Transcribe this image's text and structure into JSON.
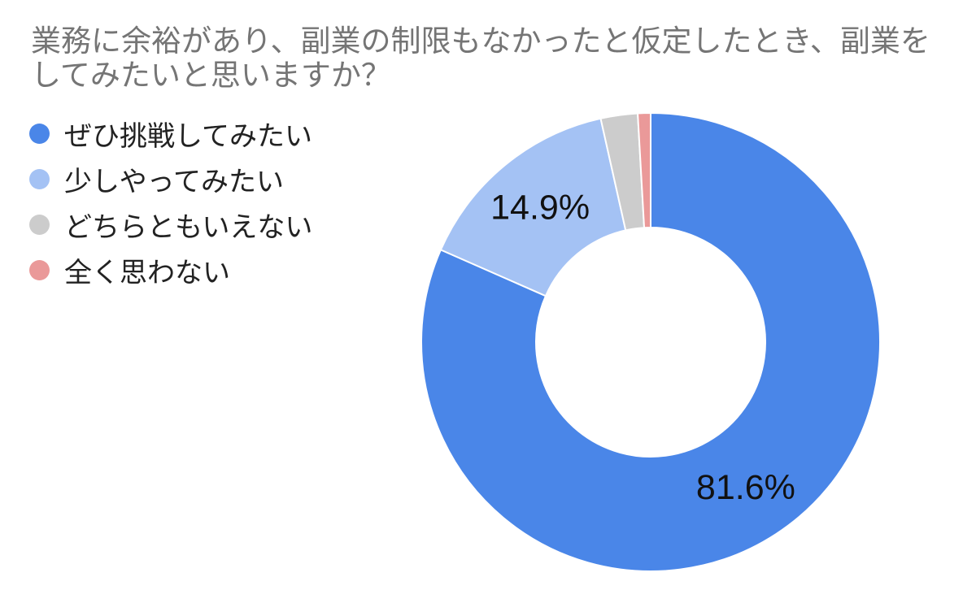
{
  "chart_data": {
    "type": "pie",
    "donut": true,
    "title": "業務に余裕があり、副業の制限もなかったと仮定したとき、副業をしてみたいと思いますか？",
    "legend_position": "left",
    "categories": [
      "ぜひ挑戦してみたい",
      "少しやってみたい",
      "どちらともいえない",
      "全く思わない"
    ],
    "values": [
      81.6,
      14.9,
      2.6,
      0.9
    ],
    "colors": [
      "#4a86e8",
      "#a4c2f4",
      "#cccccc",
      "#ea9999"
    ],
    "data_labels": [
      "81.6%",
      "14.9%",
      "",
      ""
    ]
  }
}
